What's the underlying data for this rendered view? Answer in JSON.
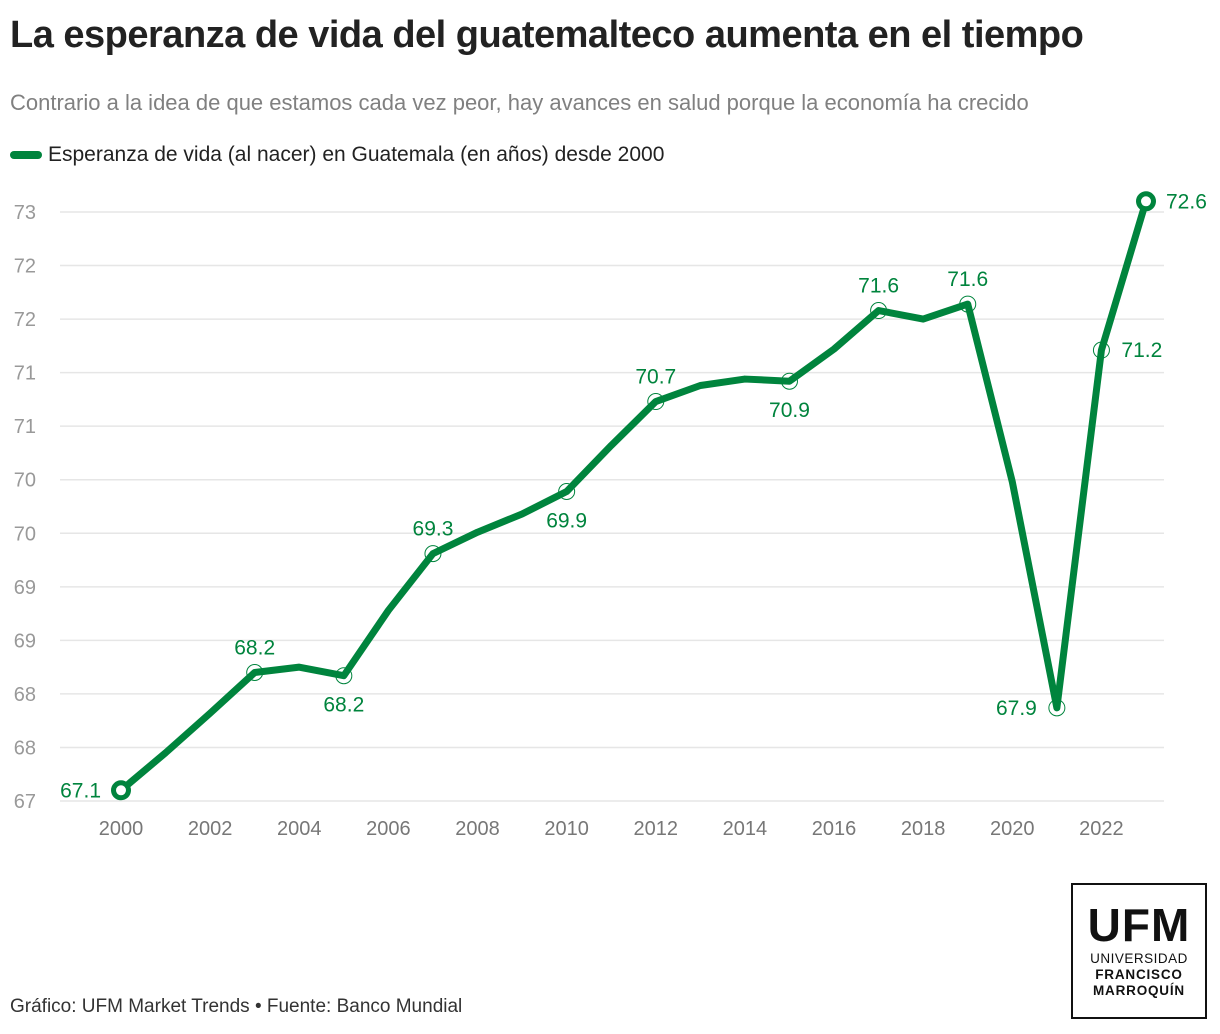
{
  "header": {
    "title": "La esperanza de vida del guatemalteco aumenta en el tiempo",
    "subtitle": "Contrario a la idea de que estamos cada vez peor, hay avances en salud porque la economía ha crecido"
  },
  "colors": {
    "series": "#00843d",
    "grid": "#e6e6e6",
    "axis_text": "#999999",
    "xaxis_text": "#777777",
    "title": "#222222",
    "subtitle": "#808080"
  },
  "chart_data": {
    "type": "line",
    "title": "La esperanza de vida del guatemalteco aumenta en el tiempo",
    "subtitle": "Contrario a la idea de que estamos cada vez peor, hay avances en salud porque la economía ha crecido",
    "xlabel": "",
    "ylabel": "",
    "legend": {
      "position": "top-left",
      "entries": [
        "Esperanza de vida (al nacer) en Guatemala (en años) desde 2000"
      ]
    },
    "x": [
      2000,
      2001,
      2002,
      2003,
      2004,
      2005,
      2006,
      2007,
      2008,
      2009,
      2010,
      2011,
      2012,
      2013,
      2014,
      2015,
      2016,
      2017,
      2018,
      2019,
      2020,
      2021,
      2022,
      2023
    ],
    "series": [
      {
        "name": "Esperanza de vida (al nacer) en Guatemala (en años) desde 2000",
        "values": [
          67.1,
          67.45,
          67.82,
          68.2,
          68.25,
          68.17,
          68.78,
          69.31,
          69.51,
          69.68,
          69.89,
          70.32,
          70.73,
          70.88,
          70.94,
          70.92,
          71.22,
          71.58,
          71.5,
          71.64,
          69.98,
          67.87,
          71.21,
          72.6
        ]
      }
    ],
    "ylim": [
      67.0,
      72.5
    ],
    "xlim": [
      2000,
      2023
    ],
    "grid": true,
    "y_ticks": [
      {
        "value": 67.0,
        "label": "67"
      },
      {
        "value": 67.5,
        "label": "68"
      },
      {
        "value": 68.0,
        "label": "68"
      },
      {
        "value": 68.5,
        "label": "69"
      },
      {
        "value": 69.0,
        "label": "69"
      },
      {
        "value": 69.5,
        "label": "70"
      },
      {
        "value": 70.0,
        "label": "70"
      },
      {
        "value": 70.5,
        "label": "71"
      },
      {
        "value": 71.0,
        "label": "71"
      },
      {
        "value": 71.5,
        "label": "72"
      },
      {
        "value": 72.0,
        "label": "72"
      },
      {
        "value": 72.5,
        "label": "73"
      }
    ],
    "x_ticks": [
      {
        "value": 2000,
        "label": "2000"
      },
      {
        "value": 2002,
        "label": "2002"
      },
      {
        "value": 2004,
        "label": "2004"
      },
      {
        "value": 2006,
        "label": "2006"
      },
      {
        "value": 2008,
        "label": "2008"
      },
      {
        "value": 2010,
        "label": "2010"
      },
      {
        "value": 2012,
        "label": "2012"
      },
      {
        "value": 2014,
        "label": "2014"
      },
      {
        "value": 2016,
        "label": "2016"
      },
      {
        "value": 2018,
        "label": "2018"
      },
      {
        "value": 2020,
        "label": "2020"
      },
      {
        "value": 2022,
        "label": "2022"
      }
    ],
    "annotations": [
      {
        "x": 2000,
        "label": "67.1",
        "side": "left",
        "marker": "endpoint"
      },
      {
        "x": 2003,
        "label": "68.2",
        "side": "above",
        "marker": "circle"
      },
      {
        "x": 2005,
        "label": "68.2",
        "side": "below",
        "marker": "circle"
      },
      {
        "x": 2007,
        "label": "69.3",
        "side": "above",
        "marker": "circle"
      },
      {
        "x": 2010,
        "label": "69.9",
        "side": "below",
        "marker": "circle"
      },
      {
        "x": 2012,
        "label": "70.7",
        "side": "above",
        "marker": "circle"
      },
      {
        "x": 2015,
        "label": "70.9",
        "side": "below",
        "marker": "circle"
      },
      {
        "x": 2017,
        "label": "71.6",
        "side": "above",
        "marker": "circle"
      },
      {
        "x": 2019,
        "label": "71.6",
        "side": "above",
        "marker": "circle"
      },
      {
        "x": 2021,
        "label": "67.9",
        "side": "left",
        "marker": "circle"
      },
      {
        "x": 2022,
        "label": "71.2",
        "side": "right",
        "marker": "circle"
      },
      {
        "x": 2023,
        "label": "72.6",
        "side": "right",
        "marker": "endpoint"
      }
    ]
  },
  "footer": {
    "credit": "Gráfico: UFM Market Trends • Fuente: Banco Mundial"
  },
  "logo": {
    "main": "UFM",
    "line1": "UNIVERSIDAD",
    "line2": "FRANCISCO",
    "line3": "MARROQUÍN"
  }
}
